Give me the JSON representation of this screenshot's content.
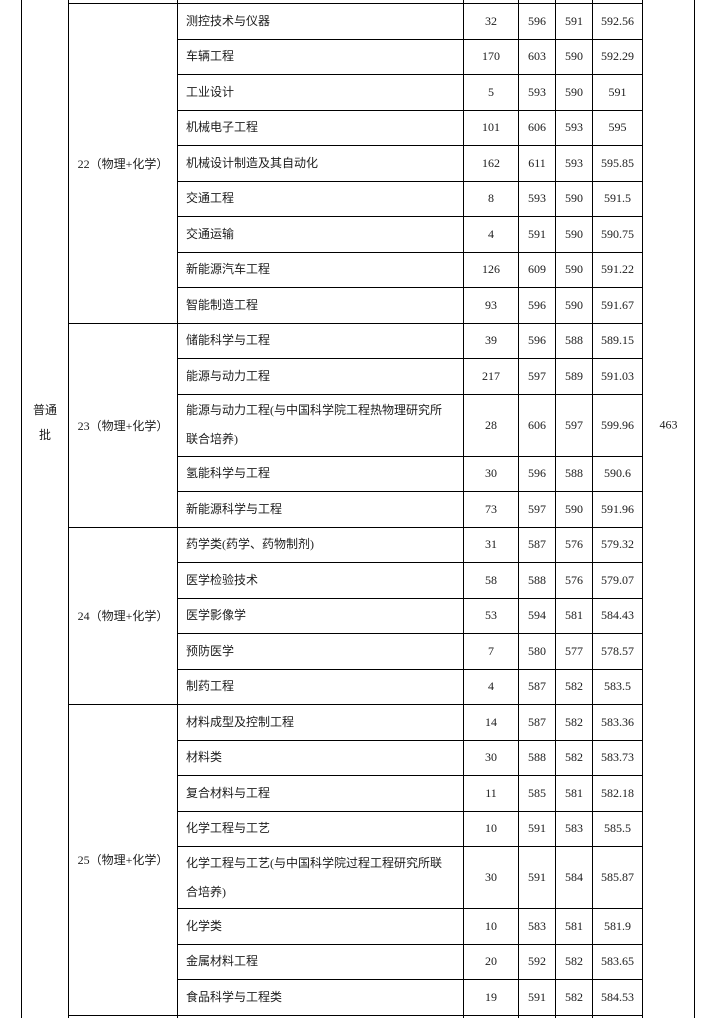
{
  "batch_label": "普通批",
  "control_line": "463",
  "sections": [
    {
      "group": "22（物理+化学）",
      "rows": [
        {
          "major": "测控技术与仪器",
          "count": "32",
          "max": "596",
          "min": "591",
          "avg": "592.56"
        },
        {
          "major": "车辆工程",
          "count": "170",
          "max": "603",
          "min": "590",
          "avg": "592.29"
        },
        {
          "major": "工业设计",
          "count": "5",
          "max": "593",
          "min": "590",
          "avg": "591"
        },
        {
          "major": "机械电子工程",
          "count": "101",
          "max": "606",
          "min": "593",
          "avg": "595"
        },
        {
          "major": "机械设计制造及其自动化",
          "count": "162",
          "max": "611",
          "min": "593",
          "avg": "595.85"
        },
        {
          "major": "交通工程",
          "count": "8",
          "max": "593",
          "min": "590",
          "avg": "591.5"
        },
        {
          "major": "交通运输",
          "count": "4",
          "max": "591",
          "min": "590",
          "avg": "590.75"
        },
        {
          "major": "新能源汽车工程",
          "count": "126",
          "max": "609",
          "min": "590",
          "avg": "591.22"
        },
        {
          "major": "智能制造工程",
          "count": "93",
          "max": "596",
          "min": "590",
          "avg": "591.67"
        }
      ]
    },
    {
      "group": "23（物理+化学）",
      "rows": [
        {
          "major": "储能科学与工程",
          "count": "39",
          "max": "596",
          "min": "588",
          "avg": "589.15"
        },
        {
          "major": "能源与动力工程",
          "count": "217",
          "max": "597",
          "min": "589",
          "avg": "591.03"
        },
        {
          "major": "能源与动力工程(与中国科学院工程热物理研究所联合培养)",
          "count": "28",
          "max": "606",
          "min": "597",
          "avg": "599.96"
        },
        {
          "major": "氢能科学与工程",
          "count": "30",
          "max": "596",
          "min": "588",
          "avg": "590.6"
        },
        {
          "major": "新能源科学与工程",
          "count": "73",
          "max": "597",
          "min": "590",
          "avg": "591.96"
        }
      ]
    },
    {
      "group": "24（物理+化学）",
      "rows": [
        {
          "major": "药学类(药学、药物制剂)",
          "count": "31",
          "max": "587",
          "min": "576",
          "avg": "579.32"
        },
        {
          "major": "医学检验技术",
          "count": "58",
          "max": "588",
          "min": "576",
          "avg": "579.07"
        },
        {
          "major": "医学影像学",
          "count": "53",
          "max": "594",
          "min": "581",
          "avg": "584.43"
        },
        {
          "major": "预防医学",
          "count": "7",
          "max": "580",
          "min": "577",
          "avg": "578.57"
        },
        {
          "major": "制药工程",
          "count": "4",
          "max": "587",
          "min": "582",
          "avg": "583.5"
        }
      ]
    },
    {
      "group": "25（物理+化学）",
      "rows": [
        {
          "major": "材料成型及控制工程",
          "count": "14",
          "max": "587",
          "min": "582",
          "avg": "583.36"
        },
        {
          "major": "材料类",
          "count": "30",
          "max": "588",
          "min": "582",
          "avg": "583.73"
        },
        {
          "major": "复合材料与工程",
          "count": "11",
          "max": "585",
          "min": "581",
          "avg": "582.18"
        },
        {
          "major": "化学工程与工艺",
          "count": "10",
          "max": "591",
          "min": "583",
          "avg": "585.5"
        },
        {
          "major": "化学工程与工艺(与中国科学院过程工程研究所联合培养)",
          "count": "30",
          "max": "591",
          "min": "584",
          "avg": "585.87"
        },
        {
          "major": "化学类",
          "count": "10",
          "max": "583",
          "min": "581",
          "avg": "581.9"
        },
        {
          "major": "金属材料工程",
          "count": "20",
          "max": "592",
          "min": "582",
          "avg": "583.65"
        },
        {
          "major": "食品科学与工程类",
          "count": "19",
          "max": "591",
          "min": "582",
          "avg": "584.53"
        }
      ]
    }
  ]
}
